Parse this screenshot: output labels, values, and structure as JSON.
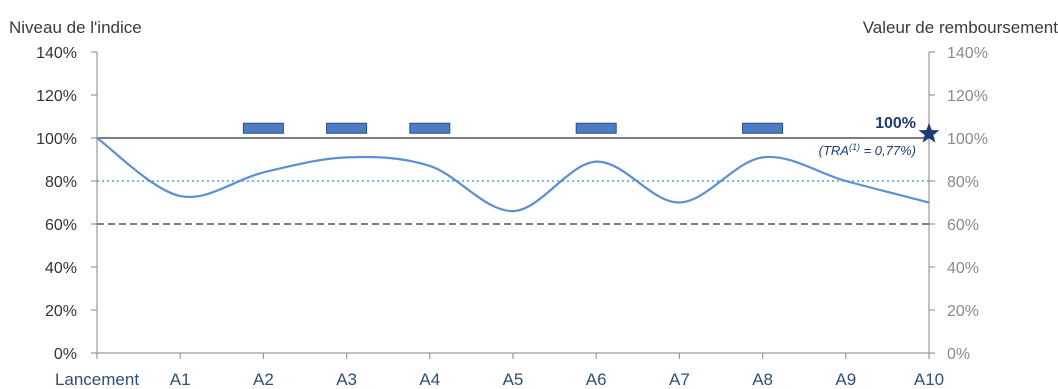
{
  "chart_data": {
    "type": "line",
    "left_axis_label": "Niveau de l'indice",
    "right_axis_label": "Valeur de remboursement",
    "categories": [
      "Lancement",
      "A1",
      "A2",
      "A3",
      "A4",
      "A5",
      "A6",
      "A7",
      "A8",
      "A9",
      "A10"
    ],
    "y_ticks": [
      "0%",
      "20%",
      "40%",
      "60%",
      "80%",
      "100%",
      "120%",
      "140%"
    ],
    "ylim": [
      0,
      140
    ],
    "series": [
      {
        "values": [
          100,
          73,
          84,
          91,
          87,
          66,
          89,
          70,
          91,
          80,
          70
        ],
        "color": "#5b8fd6"
      }
    ],
    "reference_lines": [
      {
        "value": 100,
        "style": "solid",
        "color": "#555555"
      },
      {
        "value": 80,
        "style": "dotted",
        "color": "#5b9bd5"
      },
      {
        "value": 60,
        "style": "dashed",
        "color": "#555555"
      }
    ],
    "markers": {
      "value": 105,
      "positions": [
        "A2",
        "A3",
        "A4",
        "A6",
        "A8"
      ],
      "fill": "#4f7bc0",
      "stroke": "#2c4f8a"
    },
    "annotation": {
      "main": "100%",
      "sub_prefix": "(TRA",
      "sub_sup": "(1)",
      "sub_suffix": " = 0,77%)",
      "star_value": 102,
      "color": "#1f3b73"
    },
    "grid": false,
    "legend": "none"
  }
}
